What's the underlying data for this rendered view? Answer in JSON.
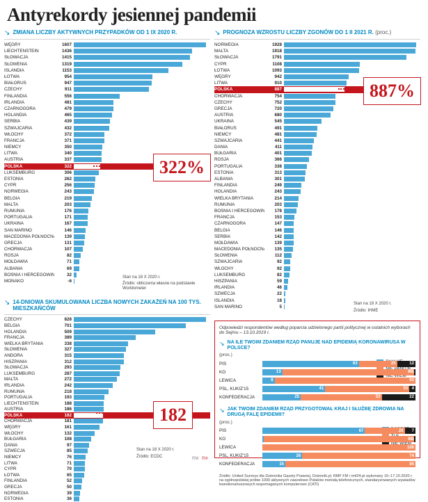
{
  "title": "Antyrekordy jesiennej pandemii",
  "colors": {
    "bar": "#4aa8d8",
    "accent_blue": "#0089c4",
    "highlight": "#c4151c",
    "background": "#ffffff",
    "seg_blue": "#4aa8d8",
    "seg_orange": "#f58b5e",
    "seg_black": "#1a1a1a"
  },
  "panel1": {
    "header": "ZMIANA LICZBY AKTYWNYCH PRZYPADKÓW OD 1 IX 2020 R.",
    "unit": "",
    "max": 1607,
    "highlight_name": "POLSKA",
    "callout": "322%",
    "foot1": "Stan na 18 X 2020 r.",
    "foot2": "Źródło: obliczenia własne na podstawie Worldometer",
    "rows": [
      {
        "n": "WĘGRY",
        "v": 1607
      },
      {
        "n": "LIECHTENSTEIN",
        "v": 1436
      },
      {
        "n": "SŁOWACJA",
        "v": 1415
      },
      {
        "n": "SŁOWENIA",
        "v": 1319
      },
      {
        "n": "ISLANDIA",
        "v": 1153
      },
      {
        "n": "ŁOTWA",
        "v": 954
      },
      {
        "n": "BIAŁORUŚ",
        "v": 947
      },
      {
        "n": "CZECHY",
        "v": 911
      },
      {
        "n": "FINLANDIA",
        "v": 556
      },
      {
        "n": "IRLANDIA",
        "v": 481
      },
      {
        "n": "CZARNOGÓRA",
        "v": 479
      },
      {
        "n": "HOLANDIA",
        "v": 465
      },
      {
        "n": "SERBIA",
        "v": 439
      },
      {
        "n": "SZWAJCARIA",
        "v": 432
      },
      {
        "n": "WŁOCHY",
        "v": 372
      },
      {
        "n": "FRANCJA",
        "v": 371
      },
      {
        "n": "NIEMCY",
        "v": 350
      },
      {
        "n": "LITWA",
        "v": 340
      },
      {
        "n": "AUSTRIA",
        "v": 337
      },
      {
        "n": "POLSKA",
        "v": 322
      },
      {
        "n": "LUKSEMBURG",
        "v": 306
      },
      {
        "n": "ESTONIA",
        "v": 262
      },
      {
        "n": "CYPR",
        "v": 256
      },
      {
        "n": "NORWEGIA",
        "v": 243
      },
      {
        "n": "BELGIA",
        "v": 219
      },
      {
        "n": "MALTA",
        "v": 203
      },
      {
        "n": "RUMUNIA",
        "v": 176
      },
      {
        "n": "PORTUGALIA",
        "v": 171
      },
      {
        "n": "UKRAINA",
        "v": 167
      },
      {
        "n": "SAN MARINO",
        "v": 146
      },
      {
        "n": "MACEDONIA PÓŁNOCNA",
        "v": 139
      },
      {
        "n": "GRECJA",
        "v": 131
      },
      {
        "n": "CHORWACJA",
        "v": 107
      },
      {
        "n": "ROSJA",
        "v": 82
      },
      {
        "n": "MOŁDAWIA",
        "v": 71
      },
      {
        "n": "ALBANIA",
        "v": 69
      },
      {
        "n": "BOŚNIA I HERCEGOWINA",
        "v": 32
      },
      {
        "n": "MONAKO",
        "v": -6
      }
    ]
  },
  "panel2": {
    "header": "PROGNOZA WZROSTU LICZBY ZGONÓW DO 1 II 2021 R.",
    "unit": "(proc.)",
    "max": 1928,
    "highlight_name": "POLSKA",
    "callout": "887%",
    "foot1": "Stan na 18 X 2020 r.",
    "foot2": "Źródło: IHME",
    "rows": [
      {
        "n": "NORWEGIA",
        "v": 1928
      },
      {
        "n": "MALTA",
        "v": 1918
      },
      {
        "n": "SŁOWACJA",
        "v": 1791
      },
      {
        "n": "CYPR",
        "v": 1108
      },
      {
        "n": "ŁOTWA",
        "v": 1093
      },
      {
        "n": "WĘGRY",
        "v": 942
      },
      {
        "n": "LITWA",
        "v": 910
      },
      {
        "n": "POLSKA",
        "v": 887
      },
      {
        "n": "CHORWACJA",
        "v": 754
      },
      {
        "n": "CZECHY",
        "v": 752
      },
      {
        "n": "GRECJA",
        "v": 720
      },
      {
        "n": "AUSTRIA",
        "v": 680
      },
      {
        "n": "UKRAINA",
        "v": 545
      },
      {
        "n": "BIAŁORUŚ",
        "v": 491
      },
      {
        "n": "NIEMCY",
        "v": 481
      },
      {
        "n": "SZWAJCARIA",
        "v": 441
      },
      {
        "n": "DANIA",
        "v": 411
      },
      {
        "n": "BUŁGARIA",
        "v": 401
      },
      {
        "n": "ROSJA",
        "v": 366
      },
      {
        "n": "PORTUGALIA",
        "v": 338
      },
      {
        "n": "ESTONIA",
        "v": 313
      },
      {
        "n": "ALBANIA",
        "v": 301
      },
      {
        "n": "FINLANDIA",
        "v": 249
      },
      {
        "n": "HOLANDIA",
        "v": 243
      },
      {
        "n": "WIELKA BRYTANIA",
        "v": 214
      },
      {
        "n": "RUMUNIA",
        "v": 203
      },
      {
        "n": "BOŚNIA I HERCEGOWINA",
        "v": 178
      },
      {
        "n": "FRANCJA",
        "v": 153
      },
      {
        "n": "CZARNOGÓRA",
        "v": 147
      },
      {
        "n": "BELGIA",
        "v": 146
      },
      {
        "n": "SERBIA",
        "v": 142
      },
      {
        "n": "MOŁDAWIA",
        "v": 139
      },
      {
        "n": "MACEDONIA PÓŁNOCNA",
        "v": 135
      },
      {
        "n": "SŁOWENIA",
        "v": 112
      },
      {
        "n": "SZWAJCARIA",
        "v": 92
      },
      {
        "n": "WŁOCHY",
        "v": 92
      },
      {
        "n": "LUKSEMBURG",
        "v": 82
      },
      {
        "n": "HISZPANIA",
        "v": 59
      },
      {
        "n": "IRLANDIA",
        "v": 46
      },
      {
        "n": "SZWECJA",
        "v": 22
      },
      {
        "n": "ISLANDIA",
        "v": 18
      },
      {
        "n": "SAN MARINO",
        "v": 5
      }
    ]
  },
  "panel3": {
    "header": "14-DNIOWA SKUMULOWANA LICZBA NOWYCH ZAKAŻEŃ NA 100 TYS. MIESZKAŃCÓW",
    "unit": "",
    "max": 828,
    "highlight_name": "POLSKA",
    "callout": "182",
    "foot1": "Stan na 18 X 2020 r.",
    "foot2": "Źródło: ECDC",
    "sig": "RM",
    "rows": [
      {
        "n": "CZECHY",
        "v": 828
      },
      {
        "n": "BELGIA",
        "v": 701
      },
      {
        "n": "HOLANDIA",
        "v": 509
      },
      {
        "n": "FRANCJA",
        "v": 389
      },
      {
        "n": "WIELKA BRYTANIA",
        "v": 338
      },
      {
        "n": "SŁOWENIA",
        "v": 327
      },
      {
        "n": "ANDORA",
        "v": 315
      },
      {
        "n": "HISZPANIA",
        "v": 312
      },
      {
        "n": "SŁOWACJA",
        "v": 293
      },
      {
        "n": "LUKSEMBURG",
        "v": 287
      },
      {
        "n": "MALTA",
        "v": 272
      },
      {
        "n": "IRLANDIA",
        "v": 242
      },
      {
        "n": "RUMUNIA",
        "v": 218
      },
      {
        "n": "PORTUGALIA",
        "v": 193
      },
      {
        "n": "LIECHTENSTEIN",
        "v": 188
      },
      {
        "n": "AUSTRIA",
        "v": 186
      },
      {
        "n": "POLSKA",
        "v": 182
      },
      {
        "n": "CHORWACJA",
        "v": 181
      },
      {
        "n": "WĘGRY",
        "v": 161
      },
      {
        "n": "WŁOCHY",
        "v": 132
      },
      {
        "n": "BUŁGARIA",
        "v": 108
      },
      {
        "n": "DANIA",
        "v": 97
      },
      {
        "n": "SZWECJA",
        "v": 85
      },
      {
        "n": "NIEMCY",
        "v": 76
      },
      {
        "n": "LITWA",
        "v": 71
      },
      {
        "n": "CYPR",
        "v": 70
      },
      {
        "n": "ŁOTWA",
        "v": 65
      },
      {
        "n": "FINLANDIA",
        "v": 52
      },
      {
        "n": "GRECJA",
        "v": 50
      },
      {
        "n": "NORWEGIA",
        "v": 39
      },
      {
        "n": "ESTONIA",
        "v": 36
      }
    ]
  },
  "survey": {
    "intro": "Odpowiedzi respondentów według poparcia udzielonego partii politycznej w ostatnich wyborach do Sejmu – 13.10.2019 r.",
    "q1": {
      "text": "NA ILE TWOIM ZDANIEM RZĄD PANUJE NAD EPIDEMIĄ KORONAWIRUSA W POLSCE?",
      "unit": "(proc.)",
      "legend": [
        "PANUJE",
        "NIE PANUJE",
        "NIE WIEM"
      ],
      "rows": [
        {
          "n": "PIS",
          "s": [
            63,
            25,
            12
          ]
        },
        {
          "n": "KO",
          "s": [
            13,
            86,
            1
          ]
        },
        {
          "n": "LEWICA",
          "s": [
            8,
            92,
            0
          ]
        },
        {
          "n": "PSL, KUKIZ'15",
          "s": [
            41,
            55,
            4
          ]
        },
        {
          "n": "KONFEDERACJA",
          "s": [
            25,
            53,
            22
          ]
        }
      ]
    },
    "q2": {
      "text": "JAK TWOIM ZDANIEM RZĄD PRZYGOTOWAŁ KRAJ I SŁUŻBĘ ZDROWIA NA DRUGĄ FALĘ EPIDEMII?",
      "unit": "(proc.)",
      "legend": [
        "DOBRZE",
        "ŹLE",
        "NIE WIEM"
      ],
      "rows": [
        {
          "n": "PIS",
          "s": [
            67,
            26,
            7
          ]
        },
        {
          "n": "KO",
          "s": [
            1,
            98,
            1
          ]
        },
        {
          "n": "LEWICA",
          "s": [
            0,
            100,
            0
          ]
        },
        {
          "n": "PSL, KUKIZ'15",
          "s": [
            26,
            74,
            0
          ]
        },
        {
          "n": "KONFEDERACJA",
          "s": [
            15,
            85,
            0
          ]
        }
      ]
    },
    "source": "Źródło: United Surveys dla Dziennika Gazety Prawnej, Dziennik.pl, RMF FM i rmf24.pl wykonany 16–17.10.2020 r. na ogólnopolskiej próbie 1000 aktywnych zawodowo Polaków metodą telefonicznych, standaryzowanych wywiadów kwestionariuszowych wspomaganych komputerowo (CATI)"
  }
}
